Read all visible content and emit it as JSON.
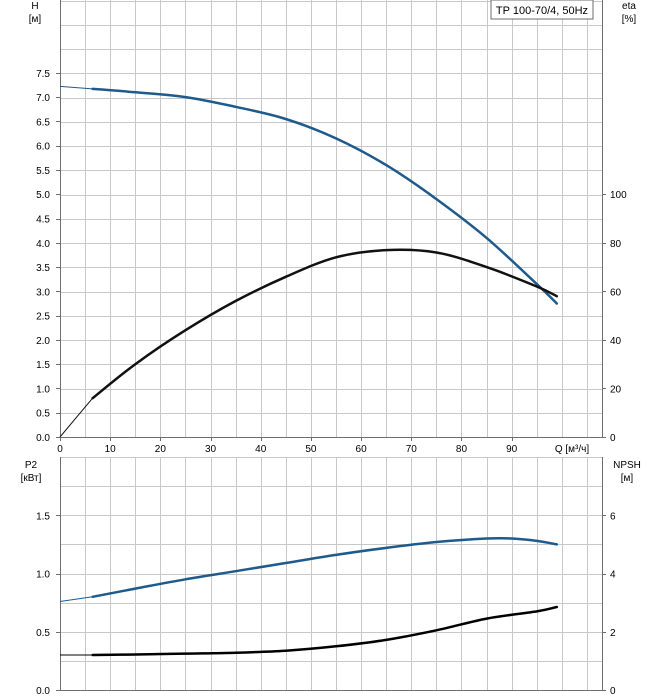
{
  "chart_data": [
    {
      "type": "line",
      "title": "TP 100-70/4, 50Hz",
      "xlabel": "Q [м³/ч]",
      "x_ticks": [
        "0",
        "10",
        "20",
        "30",
        "40",
        "50",
        "60",
        "70",
        "80",
        "90"
      ],
      "xlim": [
        0,
        108
      ],
      "left_axis": {
        "label_line1": "H",
        "label_line2": "[м]",
        "ylim": [
          0,
          9
        ],
        "ticks": [
          "0.0",
          "0.5",
          "1.0",
          "1.5",
          "2.0",
          "2.5",
          "3.0",
          "3.5",
          "4.0",
          "4.5",
          "5.0",
          "5.5",
          "6.0",
          "6.5",
          "7.0",
          "7.5"
        ]
      },
      "right_axis": {
        "label_line1": "eta",
        "label_line2": "[%]",
        "ylim": [
          0,
          180
        ],
        "ticks": [
          "0",
          "20",
          "40",
          "60",
          "80",
          "100"
        ]
      },
      "grid": true,
      "series": [
        {
          "axis": "left",
          "color": "#1f5a8c",
          "dashed_until": 6.5,
          "x": [
            0,
            6.5,
            15,
            25,
            35,
            45,
            55,
            65,
            75,
            85,
            95,
            99
          ],
          "y": [
            7.22,
            7.17,
            7.1,
            7.0,
            6.8,
            6.55,
            6.15,
            5.6,
            4.9,
            4.1,
            3.15,
            2.75
          ]
        },
        {
          "axis": "right",
          "color": "#111111",
          "dashed_until": 6.5,
          "x": [
            0,
            6.5,
            15,
            25,
            35,
            45,
            55,
            65,
            75,
            85,
            95,
            99
          ],
          "y": [
            0,
            16,
            30,
            44,
            56,
            66,
            74,
            77,
            76,
            70,
            62,
            58
          ]
        }
      ]
    },
    {
      "type": "line",
      "xlim": [
        0,
        108
      ],
      "left_axis": {
        "label_line1": "P2",
        "label_line2": "[кВт]",
        "ylim": [
          0,
          2.0
        ],
        "ticks": [
          "0.0",
          "0.5",
          "1.0",
          "1.5"
        ]
      },
      "right_axis": {
        "label_line1": "NPSH",
        "label_line2": "[м]",
        "ylim": [
          0,
          8
        ],
        "ticks": [
          "0",
          "2",
          "4",
          "6"
        ]
      },
      "grid": true,
      "series": [
        {
          "axis": "left",
          "color": "#1f5a8c",
          "dashed_until": 6.5,
          "x": [
            0,
            6.5,
            15,
            25,
            35,
            45,
            55,
            65,
            75,
            85,
            90,
            95,
            99
          ],
          "y": [
            0.76,
            0.8,
            0.87,
            0.95,
            1.02,
            1.09,
            1.16,
            1.22,
            1.27,
            1.3,
            1.3,
            1.28,
            1.25
          ]
        },
        {
          "axis": "right",
          "color": "#000000",
          "dashed_until": 6.5,
          "x": [
            0,
            6.5,
            15,
            25,
            35,
            45,
            55,
            65,
            75,
            85,
            95,
            99
          ],
          "y": [
            1.2,
            1.2,
            1.22,
            1.25,
            1.28,
            1.35,
            1.5,
            1.72,
            2.05,
            2.45,
            2.7,
            2.85
          ]
        }
      ]
    }
  ]
}
